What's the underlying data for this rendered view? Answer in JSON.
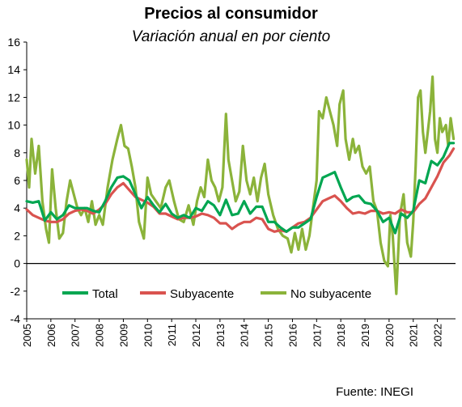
{
  "header": {
    "title": "Precios al consumidor",
    "subtitle": "Variación anual en por ciento"
  },
  "footer": {
    "source": "Fuente: INEGI"
  },
  "colors": {
    "total": "#00A651",
    "subyacente": "#D9534F",
    "no_subyacente": "#8BB33A",
    "axis": "#000000"
  },
  "chart_data": {
    "type": "line",
    "title": "Precios al consumidor",
    "subtitle": "Variación anual en por ciento",
    "xlabel": "",
    "ylabel": "",
    "ylim": [
      -4,
      16
    ],
    "yticks": [
      -4,
      -2,
      0,
      2,
      4,
      6,
      8,
      10,
      12,
      14,
      16
    ],
    "xlim": [
      2005,
      2022.75
    ],
    "xticks": [
      "2005",
      "2006",
      "2007",
      "2008",
      "2009",
      "2010",
      "2011",
      "2012",
      "2013",
      "2014",
      "2015",
      "2016",
      "2017",
      "2018",
      "2019",
      "2020",
      "2021",
      "2022"
    ],
    "grid": false,
    "legend": {
      "position": "bottom-inside",
      "entries": [
        "Total",
        "Subyacente",
        "No subyacente"
      ]
    },
    "series": [
      {
        "name": "Total",
        "color": "#00A651",
        "points": [
          [
            2005.0,
            4.5
          ],
          [
            2005.25,
            4.4
          ],
          [
            2005.5,
            4.5
          ],
          [
            2005.75,
            3.1
          ],
          [
            2006.0,
            3.7
          ],
          [
            2006.25,
            3.2
          ],
          [
            2006.5,
            3.5
          ],
          [
            2006.75,
            4.2
          ],
          [
            2007.0,
            4.0
          ],
          [
            2007.25,
            4.0
          ],
          [
            2007.5,
            4.0
          ],
          [
            2007.75,
            3.8
          ],
          [
            2008.0,
            3.7
          ],
          [
            2008.25,
            4.5
          ],
          [
            2008.5,
            5.5
          ],
          [
            2008.75,
            6.2
          ],
          [
            2009.0,
            6.3
          ],
          [
            2009.25,
            6.0
          ],
          [
            2009.5,
            5.0
          ],
          [
            2009.75,
            4.0
          ],
          [
            2010.0,
            4.8
          ],
          [
            2010.25,
            4.2
          ],
          [
            2010.5,
            3.7
          ],
          [
            2010.75,
            4.3
          ],
          [
            2011.0,
            3.6
          ],
          [
            2011.25,
            3.3
          ],
          [
            2011.5,
            3.5
          ],
          [
            2011.75,
            3.3
          ],
          [
            2012.0,
            4.0
          ],
          [
            2012.25,
            3.8
          ],
          [
            2012.5,
            4.5
          ],
          [
            2012.75,
            4.2
          ],
          [
            2013.0,
            3.5
          ],
          [
            2013.25,
            4.6
          ],
          [
            2013.5,
            3.5
          ],
          [
            2013.75,
            3.6
          ],
          [
            2014.0,
            4.5
          ],
          [
            2014.25,
            3.6
          ],
          [
            2014.5,
            4.1
          ],
          [
            2014.75,
            4.1
          ],
          [
            2015.0,
            3.0
          ],
          [
            2015.25,
            3.0
          ],
          [
            2015.5,
            2.6
          ],
          [
            2015.75,
            2.3
          ],
          [
            2016.0,
            2.6
          ],
          [
            2016.25,
            2.6
          ],
          [
            2016.5,
            2.9
          ],
          [
            2016.75,
            3.2
          ],
          [
            2017.0,
            4.8
          ],
          [
            2017.25,
            6.2
          ],
          [
            2017.5,
            6.4
          ],
          [
            2017.75,
            6.6
          ],
          [
            2018.0,
            5.5
          ],
          [
            2018.25,
            4.5
          ],
          [
            2018.5,
            4.8
          ],
          [
            2018.75,
            4.9
          ],
          [
            2019.0,
            4.4
          ],
          [
            2019.25,
            4.3
          ],
          [
            2019.5,
            3.8
          ],
          [
            2019.75,
            3.0
          ],
          [
            2020.0,
            3.3
          ],
          [
            2020.25,
            2.2
          ],
          [
            2020.5,
            3.6
          ],
          [
            2020.75,
            3.3
          ],
          [
            2021.0,
            3.8
          ],
          [
            2021.25,
            6.0
          ],
          [
            2021.5,
            5.8
          ],
          [
            2021.75,
            7.4
          ],
          [
            2022.0,
            7.1
          ],
          [
            2022.25,
            7.7
          ],
          [
            2022.5,
            8.7
          ],
          [
            2022.67,
            8.7
          ]
        ]
      },
      {
        "name": "Subyacente",
        "color": "#D9534F",
        "points": [
          [
            2005.0,
            3.9
          ],
          [
            2005.25,
            3.5
          ],
          [
            2005.5,
            3.3
          ],
          [
            2005.75,
            3.1
          ],
          [
            2006.0,
            3.0
          ],
          [
            2006.25,
            3.0
          ],
          [
            2006.5,
            3.2
          ],
          [
            2006.75,
            3.6
          ],
          [
            2007.0,
            3.8
          ],
          [
            2007.25,
            3.9
          ],
          [
            2007.5,
            3.8
          ],
          [
            2007.75,
            3.6
          ],
          [
            2008.0,
            3.9
          ],
          [
            2008.25,
            4.3
          ],
          [
            2008.5,
            5.0
          ],
          [
            2008.75,
            5.5
          ],
          [
            2009.0,
            5.8
          ],
          [
            2009.25,
            5.3
          ],
          [
            2009.5,
            4.8
          ],
          [
            2009.75,
            4.6
          ],
          [
            2010.0,
            4.4
          ],
          [
            2010.25,
            4.1
          ],
          [
            2010.5,
            3.6
          ],
          [
            2010.75,
            3.6
          ],
          [
            2011.0,
            3.4
          ],
          [
            2011.25,
            3.2
          ],
          [
            2011.5,
            3.3
          ],
          [
            2011.75,
            3.3
          ],
          [
            2012.0,
            3.4
          ],
          [
            2012.25,
            3.6
          ],
          [
            2012.5,
            3.5
          ],
          [
            2012.75,
            3.3
          ],
          [
            2013.0,
            2.9
          ],
          [
            2013.25,
            2.9
          ],
          [
            2013.5,
            2.5
          ],
          [
            2013.75,
            2.8
          ],
          [
            2014.0,
            3.0
          ],
          [
            2014.25,
            3.0
          ],
          [
            2014.5,
            3.3
          ],
          [
            2014.75,
            3.2
          ],
          [
            2015.0,
            2.5
          ],
          [
            2015.25,
            2.3
          ],
          [
            2015.5,
            2.4
          ],
          [
            2015.75,
            2.3
          ],
          [
            2016.0,
            2.6
          ],
          [
            2016.25,
            2.9
          ],
          [
            2016.5,
            3.0
          ],
          [
            2016.75,
            3.3
          ],
          [
            2017.0,
            3.9
          ],
          [
            2017.25,
            4.5
          ],
          [
            2017.5,
            4.7
          ],
          [
            2017.75,
            4.9
          ],
          [
            2018.0,
            4.5
          ],
          [
            2018.25,
            4.0
          ],
          [
            2018.5,
            3.6
          ],
          [
            2018.75,
            3.7
          ],
          [
            2019.0,
            3.6
          ],
          [
            2019.25,
            3.8
          ],
          [
            2019.5,
            3.8
          ],
          [
            2019.75,
            3.6
          ],
          [
            2020.0,
            3.7
          ],
          [
            2020.25,
            3.6
          ],
          [
            2020.5,
            3.9
          ],
          [
            2020.75,
            3.7
          ],
          [
            2021.0,
            3.7
          ],
          [
            2021.25,
            4.3
          ],
          [
            2021.5,
            4.7
          ],
          [
            2021.75,
            5.5
          ],
          [
            2022.0,
            6.3
          ],
          [
            2022.25,
            7.3
          ],
          [
            2022.5,
            7.8
          ],
          [
            2022.67,
            8.3
          ]
        ]
      },
      {
        "name": "No subyacente",
        "color": "#8BB33A",
        "points": [
          [
            2005.0,
            7.5
          ],
          [
            2005.1,
            5.5
          ],
          [
            2005.2,
            9.0
          ],
          [
            2005.35,
            6.5
          ],
          [
            2005.5,
            8.5
          ],
          [
            2005.65,
            4.5
          ],
          [
            2005.8,
            2.5
          ],
          [
            2005.92,
            1.5
          ],
          [
            2006.05,
            6.8
          ],
          [
            2006.2,
            4.0
          ],
          [
            2006.35,
            1.8
          ],
          [
            2006.5,
            2.2
          ],
          [
            2006.65,
            4.5
          ],
          [
            2006.8,
            6.0
          ],
          [
            2006.95,
            5.0
          ],
          [
            2007.1,
            4.0
          ],
          [
            2007.25,
            3.5
          ],
          [
            2007.4,
            4.0
          ],
          [
            2007.55,
            3.0
          ],
          [
            2007.7,
            4.5
          ],
          [
            2007.85,
            2.8
          ],
          [
            2008.0,
            3.5
          ],
          [
            2008.15,
            2.8
          ],
          [
            2008.35,
            5.5
          ],
          [
            2008.55,
            7.5
          ],
          [
            2008.75,
            9.0
          ],
          [
            2008.9,
            10.0
          ],
          [
            2009.05,
            8.5
          ],
          [
            2009.2,
            8.3
          ],
          [
            2009.35,
            7.0
          ],
          [
            2009.5,
            5.5
          ],
          [
            2009.65,
            3.0
          ],
          [
            2009.85,
            1.8
          ],
          [
            2010.0,
            6.2
          ],
          [
            2010.15,
            5.0
          ],
          [
            2010.35,
            4.5
          ],
          [
            2010.55,
            4.0
          ],
          [
            2010.75,
            5.5
          ],
          [
            2010.9,
            6.0
          ],
          [
            2011.1,
            4.5
          ],
          [
            2011.3,
            3.2
          ],
          [
            2011.5,
            3.0
          ],
          [
            2011.7,
            4.2
          ],
          [
            2011.9,
            2.8
          ],
          [
            2012.05,
            4.5
          ],
          [
            2012.2,
            5.5
          ],
          [
            2012.35,
            4.8
          ],
          [
            2012.5,
            7.5
          ],
          [
            2012.65,
            6.0
          ],
          [
            2012.8,
            5.5
          ],
          [
            2012.95,
            4.5
          ],
          [
            2013.1,
            5.5
          ],
          [
            2013.25,
            10.8
          ],
          [
            2013.35,
            7.5
          ],
          [
            2013.5,
            6.0
          ],
          [
            2013.65,
            4.5
          ],
          [
            2013.8,
            5.2
          ],
          [
            2013.95,
            8.5
          ],
          [
            2014.1,
            6.0
          ],
          [
            2014.25,
            5.0
          ],
          [
            2014.4,
            6.2
          ],
          [
            2014.55,
            4.5
          ],
          [
            2014.7,
            6.2
          ],
          [
            2014.85,
            7.2
          ],
          [
            2015.0,
            5.0
          ],
          [
            2015.2,
            3.5
          ],
          [
            2015.4,
            2.5
          ],
          [
            2015.6,
            2.0
          ],
          [
            2015.8,
            1.8
          ],
          [
            2015.95,
            0.8
          ],
          [
            2016.1,
            2.2
          ],
          [
            2016.25,
            1.0
          ],
          [
            2016.4,
            2.5
          ],
          [
            2016.55,
            1.0
          ],
          [
            2016.7,
            2.0
          ],
          [
            2016.85,
            4.0
          ],
          [
            2017.0,
            6.0
          ],
          [
            2017.1,
            11.0
          ],
          [
            2017.25,
            10.5
          ],
          [
            2017.4,
            12.0
          ],
          [
            2017.55,
            11.0
          ],
          [
            2017.7,
            10.0
          ],
          [
            2017.85,
            8.5
          ],
          [
            2017.95,
            11.5
          ],
          [
            2018.1,
            12.5
          ],
          [
            2018.2,
            9.0
          ],
          [
            2018.35,
            7.5
          ],
          [
            2018.5,
            9.0
          ],
          [
            2018.6,
            8.0
          ],
          [
            2018.75,
            8.5
          ],
          [
            2018.9,
            7.0
          ],
          [
            2019.05,
            6.5
          ],
          [
            2019.2,
            7.0
          ],
          [
            2019.35,
            4.5
          ],
          [
            2019.5,
            3.8
          ],
          [
            2019.65,
            1.5
          ],
          [
            2019.8,
            0.2
          ],
          [
            2019.95,
            -0.2
          ],
          [
            2020.05,
            3.5
          ],
          [
            2020.15,
            2.0
          ],
          [
            2020.3,
            -2.2
          ],
          [
            2020.45,
            3.5
          ],
          [
            2020.6,
            5.0
          ],
          [
            2020.75,
            1.5
          ],
          [
            2020.9,
            0.5
          ],
          [
            2021.0,
            3.0
          ],
          [
            2021.1,
            7.0
          ],
          [
            2021.2,
            12.0
          ],
          [
            2021.3,
            12.5
          ],
          [
            2021.4,
            9.5
          ],
          [
            2021.5,
            8.0
          ],
          [
            2021.6,
            9.5
          ],
          [
            2021.7,
            11.0
          ],
          [
            2021.8,
            13.5
          ],
          [
            2021.9,
            9.0
          ],
          [
            2022.0,
            8.0
          ],
          [
            2022.1,
            10.5
          ],
          [
            2022.2,
            9.5
          ],
          [
            2022.35,
            10.0
          ],
          [
            2022.45,
            8.5
          ],
          [
            2022.55,
            10.5
          ],
          [
            2022.67,
            9.0
          ]
        ]
      }
    ]
  }
}
